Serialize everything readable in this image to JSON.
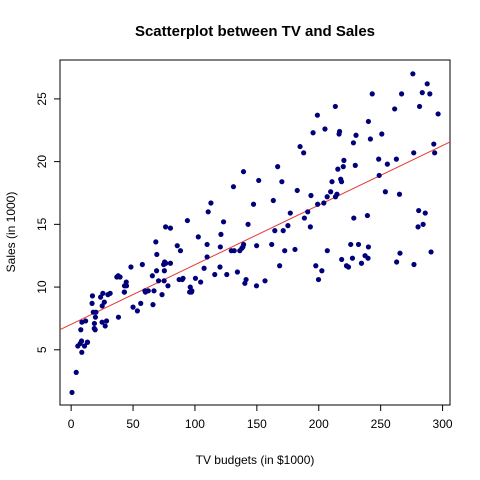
{
  "chart_data": {
    "type": "scatter",
    "title": "Scatterplot between TV and Sales",
    "xlabel": "TV budgets (in $1000)",
    "ylabel": "Sales (in 1000)",
    "xlim": [
      -9,
      306
    ],
    "ylim": [
      0.6,
      28.1
    ],
    "x_ticks": [
      0,
      50,
      100,
      150,
      200,
      250,
      300
    ],
    "y_ticks": [
      5,
      10,
      15,
      20,
      25
    ],
    "point_color": "#00007A",
    "line_color": "#E53935",
    "regression": {
      "intercept": 7.03,
      "slope": 0.0475
    },
    "points": [
      [
        0.7,
        1.6
      ],
      [
        4.1,
        3.2
      ],
      [
        5.4,
        5.3
      ],
      [
        7.3,
        5.5
      ],
      [
        7.8,
        6.6
      ],
      [
        8.4,
        5.7
      ],
      [
        8.6,
        4.8
      ],
      [
        8.7,
        7.2
      ],
      [
        10.8,
        5.3
      ],
      [
        11.7,
        7.3
      ],
      [
        13.1,
        5.6
      ],
      [
        13.2,
        5.6
      ],
      [
        16.9,
        8.7
      ],
      [
        17.2,
        9.3
      ],
      [
        17.9,
        8.0
      ],
      [
        18.7,
        6.7
      ],
      [
        18.8,
        7.1
      ],
      [
        19.4,
        6.6
      ],
      [
        19.6,
        7.6
      ],
      [
        20.0,
        8.0
      ],
      [
        23.8,
        9.2
      ],
      [
        25.0,
        7.2
      ],
      [
        25.1,
        8.5
      ],
      [
        25.6,
        9.5
      ],
      [
        26.8,
        8.8
      ],
      [
        27.5,
        6.9
      ],
      [
        28.6,
        7.3
      ],
      [
        29.7,
        9.4
      ],
      [
        31.5,
        9.5
      ],
      [
        36.9,
        10.8
      ],
      [
        38.0,
        10.9
      ],
      [
        38.2,
        7.6
      ],
      [
        39.5,
        10.8
      ],
      [
        43.0,
        9.6
      ],
      [
        43.1,
        10.1
      ],
      [
        44.5,
        10.4
      ],
      [
        44.7,
        10.1
      ],
      [
        48.3,
        11.6
      ],
      [
        50.0,
        8.4
      ],
      [
        53.5,
        8.1
      ],
      [
        56.2,
        8.7
      ],
      [
        57.5,
        11.8
      ],
      [
        59.6,
        9.7
      ],
      [
        62.3,
        9.7
      ],
      [
        65.6,
        10.9
      ],
      [
        66.1,
        8.6
      ],
      [
        66.9,
        9.7
      ],
      [
        68.4,
        13.6
      ],
      [
        69.0,
        11.3
      ],
      [
        69.2,
        12.6
      ],
      [
        70.6,
        10.5
      ],
      [
        73.4,
        9.4
      ],
      [
        74.7,
        11.8
      ],
      [
        75.1,
        10.5
      ],
      [
        75.3,
        11.3
      ],
      [
        75.5,
        12.0
      ],
      [
        76.3,
        14.8
      ],
      [
        76.4,
        11.9
      ],
      [
        78.2,
        10.1
      ],
      [
        80.2,
        11.9
      ],
      [
        80.2,
        14.7
      ],
      [
        85.7,
        13.3
      ],
      [
        87.2,
        10.6
      ],
      [
        88.3,
        12.9
      ],
      [
        89.7,
        10.6
      ],
      [
        90.4,
        10.7
      ],
      [
        93.9,
        15.3
      ],
      [
        95.7,
        9.6
      ],
      [
        96.2,
        10.0
      ],
      [
        97.2,
        9.6
      ],
      [
        97.5,
        9.7
      ],
      [
        100.4,
        10.7
      ],
      [
        102.7,
        14.0
      ],
      [
        104.6,
        10.4
      ],
      [
        107.4,
        11.5
      ],
      [
        109.8,
        12.4
      ],
      [
        110.7,
        16.0
      ],
      [
        112.9,
        16.7
      ],
      [
        116.0,
        11.0
      ],
      [
        120.2,
        11.6
      ],
      [
        120.5,
        13.2
      ],
      [
        121.0,
        14.2
      ],
      [
        123.1,
        15.2
      ],
      [
        125.7,
        11.0
      ],
      [
        129.4,
        12.9
      ],
      [
        131.1,
        18.0
      ],
      [
        131.7,
        12.9
      ],
      [
        134.3,
        11.2
      ],
      [
        136.2,
        12.9
      ],
      [
        137.9,
        13.1
      ],
      [
        139.2,
        19.2
      ],
      [
        139.3,
        13.4
      ],
      [
        140.3,
        10.3
      ],
      [
        141.3,
        10.6
      ],
      [
        142.9,
        15.0
      ],
      [
        147.3,
        16.6
      ],
      [
        149.7,
        10.1
      ],
      [
        149.8,
        13.3
      ],
      [
        151.5,
        18.5
      ],
      [
        156.6,
        10.5
      ],
      [
        163.3,
        16.9
      ],
      [
        164.5,
        14.5
      ],
      [
        166.8,
        19.6
      ],
      [
        168.4,
        11.7
      ],
      [
        170.2,
        18.4
      ],
      [
        171.3,
        14.5
      ],
      [
        172.5,
        12.9
      ],
      [
        175.1,
        14.9
      ],
      [
        177.0,
        15.9
      ],
      [
        180.8,
        13.0
      ],
      [
        182.6,
        17.7
      ],
      [
        184.9,
        21.2
      ],
      [
        187.8,
        20.7
      ],
      [
        188.4,
        15.5
      ],
      [
        191.1,
        16.0
      ],
      [
        193.2,
        14.8
      ],
      [
        193.7,
        17.3
      ],
      [
        195.4,
        22.3
      ],
      [
        197.6,
        11.7
      ],
      [
        198.9,
        23.7
      ],
      [
        199.1,
        16.6
      ],
      [
        199.8,
        10.6
      ],
      [
        202.5,
        11.3
      ],
      [
        204.1,
        16.7
      ],
      [
        205.0,
        22.6
      ],
      [
        206.8,
        17.2
      ],
      [
        206.9,
        12.9
      ],
      [
        209.6,
        17.6
      ],
      [
        210.7,
        18.4
      ],
      [
        213.4,
        24.4
      ],
      [
        213.5,
        17.2
      ],
      [
        214.7,
        17.4
      ],
      [
        215.4,
        19.4
      ],
      [
        216.4,
        22.2
      ],
      [
        216.8,
        22.4
      ],
      [
        217.7,
        18.6
      ],
      [
        218.4,
        18.4
      ],
      [
        218.5,
        12.2
      ],
      [
        219.8,
        19.6
      ],
      [
        220.3,
        20.1
      ],
      [
        222.4,
        11.7
      ],
      [
        224.0,
        11.6
      ],
      [
        225.8,
        13.4
      ],
      [
        227.2,
        12.3
      ],
      [
        228.0,
        21.5
      ],
      [
        228.3,
        15.5
      ],
      [
        229.5,
        19.7
      ],
      [
        230.1,
        22.1
      ],
      [
        232.1,
        13.4
      ],
      [
        234.5,
        11.9
      ],
      [
        237.4,
        12.5
      ],
      [
        239.3,
        15.7
      ],
      [
        239.8,
        12.3
      ],
      [
        240.1,
        13.2
      ],
      [
        240.1,
        23.2
      ],
      [
        241.7,
        21.8
      ],
      [
        243.2,
        25.4
      ],
      [
        248.4,
        20.2
      ],
      [
        248.8,
        18.9
      ],
      [
        250.9,
        22.2
      ],
      [
        253.8,
        17.6
      ],
      [
        255.4,
        19.8
      ],
      [
        261.3,
        24.2
      ],
      [
        262.7,
        20.2
      ],
      [
        262.9,
        12.0
      ],
      [
        265.2,
        17.4
      ],
      [
        265.6,
        12.7
      ],
      [
        266.9,
        25.4
      ],
      [
        276.7,
        20.7
      ],
      [
        276.9,
        11.8
      ],
      [
        280.2,
        14.8
      ],
      [
        280.7,
        16.1
      ],
      [
        281.4,
        24.4
      ],
      [
        283.6,
        25.5
      ],
      [
        284.3,
        15.0
      ],
      [
        286.0,
        15.9
      ],
      [
        287.6,
        26.2
      ],
      [
        289.7,
        25.4
      ],
      [
        290.7,
        12.8
      ],
      [
        292.9,
        21.4
      ],
      [
        293.6,
        20.7
      ],
      [
        296.4,
        23.8
      ],
      [
        276.0,
        27.0
      ],
      [
        109.8,
        13.4
      ],
      [
        43.0,
        9.6
      ],
      [
        60.0,
        9.6
      ],
      [
        138.7,
        13.2
      ],
      [
        162.0,
        13.4
      ]
    ]
  }
}
